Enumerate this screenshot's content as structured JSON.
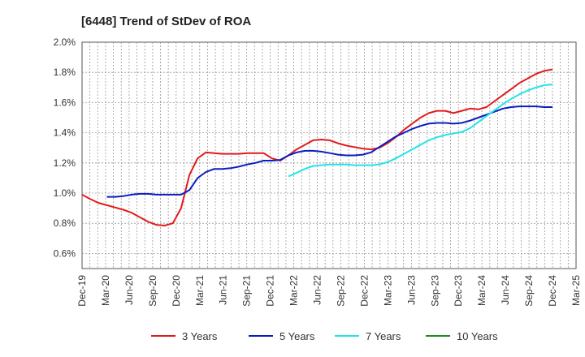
{
  "chart_data": {
    "type": "line",
    "title": "[6448]  Trend of StDev of ROA",
    "xlabel": "",
    "ylabel": "",
    "ylim": [
      0.5,
      2.0
    ],
    "y_ticks": [
      "2.0%",
      "1.8%",
      "1.6%",
      "1.4%",
      "1.2%",
      "1.0%",
      "0.8%",
      "0.6%"
    ],
    "y_tick_values": [
      2.0,
      1.8,
      1.6,
      1.4,
      1.2,
      1.0,
      0.8,
      0.6
    ],
    "x_ticks": [
      "Dec-19",
      "Mar-20",
      "Jun-20",
      "Sep-20",
      "Dec-20",
      "Mar-21",
      "Jun-21",
      "Sep-21",
      "Dec-21",
      "Mar-22",
      "Jun-22",
      "Sep-22",
      "Dec-22",
      "Mar-23",
      "Jun-23",
      "Sep-23",
      "Dec-23",
      "Mar-24",
      "Jun-24",
      "Sep-24",
      "Dec-24",
      "Mar-25"
    ],
    "grid": true,
    "legend_position": "bottom",
    "series": [
      {
        "name": "3 Years",
        "color": "#e31a1c",
        "values": [
          0.99,
          0.96,
          0.935,
          0.92,
          0.905,
          0.89,
          0.87,
          0.84,
          0.81,
          0.79,
          0.785,
          0.8,
          0.9,
          1.12,
          1.23,
          1.27,
          1.265,
          1.26,
          1.26,
          1.26,
          1.265,
          1.265,
          1.265,
          1.23,
          1.215,
          1.25,
          1.29,
          1.32,
          1.35,
          1.355,
          1.35,
          1.33,
          1.315,
          1.305,
          1.295,
          1.29,
          1.3,
          1.33,
          1.37,
          1.42,
          1.46,
          1.5,
          1.53,
          1.545,
          1.545,
          1.53,
          1.545,
          1.56,
          1.555,
          1.57,
          1.61,
          1.65,
          1.69,
          1.73,
          1.76,
          1.79,
          1.81,
          1.82
        ]
      },
      {
        "name": "5 Years",
        "color": "#0a1ebe",
        "values": [
          null,
          null,
          null,
          0.975,
          0.975,
          0.98,
          0.99,
          0.995,
          0.995,
          0.99,
          0.99,
          0.99,
          0.99,
          1.02,
          1.1,
          1.14,
          1.16,
          1.16,
          1.165,
          1.175,
          1.19,
          1.2,
          1.215,
          1.215,
          1.22,
          1.25,
          1.27,
          1.28,
          1.28,
          1.275,
          1.265,
          1.255,
          1.25,
          1.25,
          1.255,
          1.27,
          1.305,
          1.34,
          1.375,
          1.4,
          1.425,
          1.445,
          1.46,
          1.465,
          1.465,
          1.46,
          1.465,
          1.48,
          1.5,
          1.52,
          1.54,
          1.56,
          1.57,
          1.575,
          1.575,
          1.575,
          1.57,
          1.57
        ]
      },
      {
        "name": "7 Years",
        "color": "#22e4e8",
        "values": [
          null,
          null,
          null,
          null,
          null,
          null,
          null,
          null,
          null,
          null,
          null,
          null,
          null,
          null,
          null,
          null,
          null,
          null,
          null,
          null,
          null,
          null,
          null,
          null,
          null,
          1.11,
          1.135,
          1.16,
          1.18,
          1.185,
          1.19,
          1.19,
          1.19,
          1.185,
          1.185,
          1.185,
          1.19,
          1.205,
          1.23,
          1.26,
          1.29,
          1.32,
          1.35,
          1.37,
          1.385,
          1.395,
          1.405,
          1.43,
          1.47,
          1.51,
          1.55,
          1.59,
          1.625,
          1.655,
          1.68,
          1.7,
          1.715,
          1.72
        ]
      },
      {
        "name": "10 Years",
        "color": "#1e8c1e",
        "values": []
      }
    ]
  }
}
